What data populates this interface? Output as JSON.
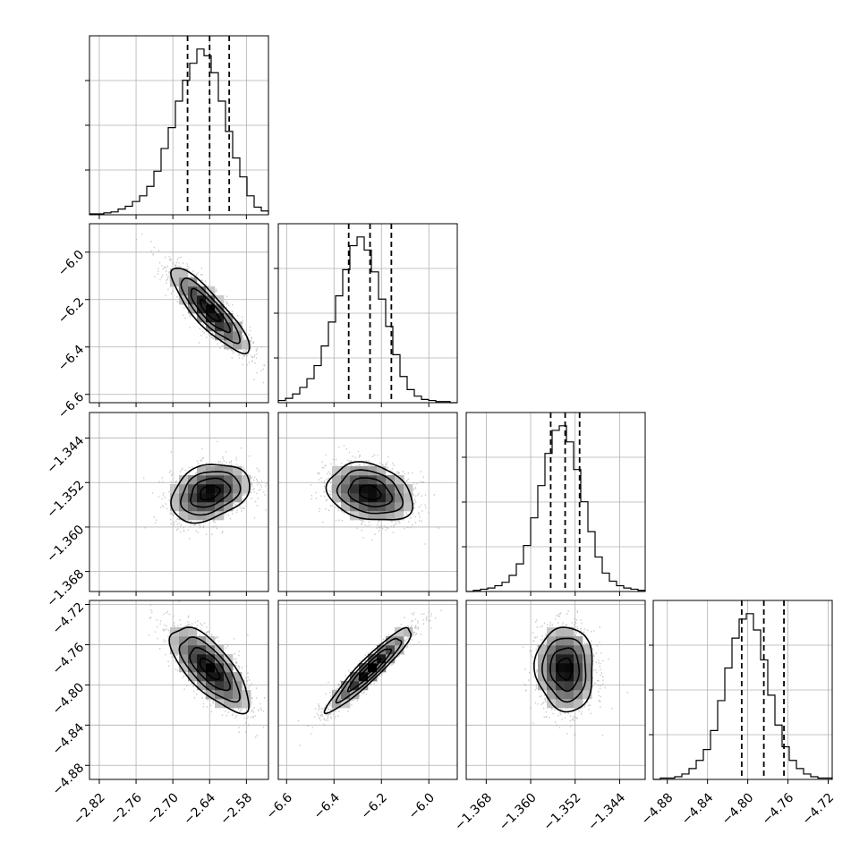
{
  "chart_data": {
    "type": "corner",
    "parameters": [
      {
        "label": "",
        "range": [
          -2.836,
          -2.544
        ],
        "ticks": [
          "−2.82",
          "−2.76",
          "−2.70",
          "−2.64",
          "−2.58"
        ],
        "tick_values": [
          -2.82,
          -2.76,
          -2.7,
          -2.64,
          -2.58
        ],
        "quantiles": [
          -2.676,
          -2.64,
          -2.608
        ],
        "median": -2.64,
        "sigma": 0.032,
        "hist_counts": [
          1,
          1,
          2,
          3,
          6,
          9,
          14,
          20,
          30,
          46,
          70,
          92,
          120,
          142,
          160,
          175,
          168,
          150,
          120,
          88,
          60,
          40,
          20,
          8,
          4
        ]
      },
      {
        "label": "",
        "range": [
          -6.635,
          -5.88
        ],
        "ticks": [
          "−6.6",
          "−6.4",
          "−6.2",
          "−6.0"
        ],
        "tick_values": [
          -6.6,
          -6.4,
          -6.2,
          -6.0
        ],
        "quantiles": [
          -6.338,
          -6.248,
          -6.158
        ],
        "median": -6.248,
        "sigma": 0.09,
        "hist_counts": [
          2,
          4,
          8,
          14,
          22,
          34,
          52,
          74,
          98,
          122,
          144,
          152,
          140,
          120,
          95,
          70,
          44,
          24,
          12,
          6,
          3,
          2,
          1,
          1,
          0
        ]
      },
      {
        "label": "",
        "range": [
          -1.3716,
          -1.3394
        ],
        "ticks": [
          "−1.368",
          "−1.360",
          "−1.352",
          "−1.344"
        ],
        "tick_values": [
          -1.368,
          -1.36,
          -1.352,
          -1.344
        ],
        "quantiles": [
          -1.3564,
          -1.3538,
          -1.3512
        ],
        "median": -1.3538,
        "sigma": 0.0026,
        "hist_counts": [
          0,
          1,
          2,
          3,
          5,
          8,
          14,
          24,
          40,
          64,
          92,
          120,
          140,
          144,
          130,
          106,
          78,
          52,
          30,
          16,
          9,
          5,
          3,
          2,
          1
        ]
      },
      {
        "label": "",
        "range": [
          -4.894,
          -4.716
        ],
        "ticks": [
          "−4.88",
          "−4.84",
          "−4.80",
          "−4.76",
          "−4.72"
        ],
        "tick_values": [
          -4.88,
          -4.84,
          -4.8,
          -4.76,
          -4.72
        ],
        "quantiles": [
          -4.806,
          -4.784,
          -4.764
        ],
        "median": -4.784,
        "sigma": 0.021,
        "hist_counts": [
          0,
          1,
          1,
          2,
          4,
          8,
          14,
          22,
          36,
          58,
          82,
          104,
          118,
          122,
          110,
          88,
          62,
          40,
          24,
          14,
          8,
          4,
          2,
          1,
          1
        ]
      }
    ],
    "correlations": [
      [
        0,
        -0.87,
        0.3,
        -0.72
      ],
      [
        -0.87,
        0,
        -0.25,
        0.94
      ],
      [
        0.3,
        -0.25,
        0,
        -0.05
      ],
      [
        -0.72,
        0.94,
        -0.05,
        0
      ]
    ],
    "grid": true,
    "quantile_levels": [
      0.16,
      0.5,
      0.84
    ],
    "contour_levels_sigma": [
      0.5,
      1.0,
      1.5,
      2.0
    ]
  }
}
